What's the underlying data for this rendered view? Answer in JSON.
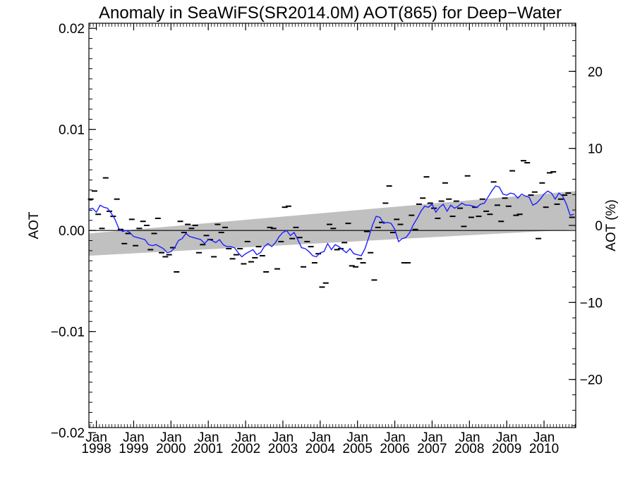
{
  "chart_data": {
    "type": "line",
    "title": "Anomaly in SeaWiFS(SR2014.0M) AOT(865) for Deep−Water",
    "ylabel_left": "AOT",
    "ylabel_right": "AOT (%)",
    "ylim_left": [
      -0.0195,
      0.0205
    ],
    "ylim_right": [
      -26.25,
      26.25
    ],
    "xlim": [
      1997.8,
      2010.85
    ],
    "left_ticks": [
      {
        "value": 0.02,
        "label": "0.02"
      },
      {
        "value": 0.01,
        "label": "0.01"
      },
      {
        "value": 0.0,
        "label": "0.00"
      },
      {
        "value": -0.01,
        "label": "−0.01"
      },
      {
        "value": -0.02,
        "label": "−0.02"
      }
    ],
    "right_ticks": [
      {
        "value": 20,
        "label": "20"
      },
      {
        "value": 10,
        "label": "10"
      },
      {
        "value": 0,
        "label": "0"
      },
      {
        "value": -10,
        "label": "−10"
      },
      {
        "value": -20,
        "label": "−20"
      }
    ],
    "x_ticks": [
      {
        "value": 1998,
        "month": "Jan",
        "year": "1998"
      },
      {
        "value": 1999,
        "month": "Jan",
        "year": "1999"
      },
      {
        "value": 2000,
        "month": "Jan",
        "year": "2000"
      },
      {
        "value": 2001,
        "month": "Jan",
        "year": "2001"
      },
      {
        "value": 2002,
        "month": "Jan",
        "year": "2002"
      },
      {
        "value": 2003,
        "month": "Jan",
        "year": "2003"
      },
      {
        "value": 2004,
        "month": "Jan",
        "year": "2004"
      },
      {
        "value": 2005,
        "month": "Jan",
        "year": "2005"
      },
      {
        "value": 2006,
        "month": "Jan",
        "year": "2006"
      },
      {
        "value": 2007,
        "month": "Jan",
        "year": "2007"
      },
      {
        "value": 2008,
        "month": "Jan",
        "year": "2008"
      },
      {
        "value": 2009,
        "month": "Jan",
        "year": "2009"
      },
      {
        "value": 2010,
        "month": "Jan",
        "year": "2010"
      }
    ],
    "trend_band": {
      "x": [
        1997.8,
        2010.85
      ],
      "upper": [
        -0.0003,
        0.0039
      ],
      "lower": [
        -0.0025,
        0.0001
      ]
    },
    "zero_line": 0.0,
    "smoothed_series": {
      "x": [
        1997.8,
        1997.9,
        1998.0,
        1998.1,
        1998.2,
        1998.3,
        1998.4,
        1998.5,
        1998.6,
        1998.7,
        1998.8,
        1998.9,
        1999.0,
        1999.1,
        1999.2,
        1999.3,
        1999.4,
        1999.5,
        1999.6,
        1999.7,
        1999.8,
        1999.9,
        2000.0,
        2000.1,
        2000.2,
        2000.3,
        2000.4,
        2000.5,
        2000.6,
        2000.7,
        2000.8,
        2000.9,
        2001.0,
        2001.1,
        2001.2,
        2001.3,
        2001.4,
        2001.5,
        2001.6,
        2001.7,
        2001.8,
        2001.9,
        2002.0,
        2002.1,
        2002.2,
        2002.3,
        2002.4,
        2002.5,
        2002.6,
        2002.7,
        2002.8,
        2002.9,
        2003.0,
        2003.1,
        2003.2,
        2003.3,
        2003.4,
        2003.5,
        2003.6,
        2003.7,
        2003.8,
        2003.9,
        2004.0,
        2004.1,
        2004.2,
        2004.3,
        2004.4,
        2004.5,
        2004.6,
        2004.7,
        2004.8,
        2004.9,
        2005.0,
        2005.1,
        2005.2,
        2005.3,
        2005.4,
        2005.5,
        2005.6,
        2005.7,
        2005.8,
        2005.9,
        2006.0,
        2006.1,
        2006.2,
        2006.3,
        2006.4,
        2006.5,
        2006.6,
        2006.7,
        2006.8,
        2006.9,
        2007.0,
        2007.1,
        2007.2,
        2007.3,
        2007.4,
        2007.5,
        2007.6,
        2007.7,
        2007.8,
        2007.9,
        2008.0,
        2008.1,
        2008.2,
        2008.3,
        2008.4,
        2008.5,
        2008.6,
        2008.7,
        2008.8,
        2008.9,
        2009.0,
        2009.1,
        2009.2,
        2009.3,
        2009.4,
        2009.5,
        2009.6,
        2009.7,
        2009.8,
        2009.9,
        2010.0,
        2010.1,
        2010.2,
        2010.3,
        2010.4,
        2010.5,
        2010.6,
        2010.7,
        2010.8
      ],
      "y": [
        0.0021,
        0.0022,
        0.0018,
        0.0025,
        0.0023,
        0.0022,
        0.0017,
        0.0011,
        0.0002,
        -0.0001,
        0.0,
        -0.0002,
        -0.0006,
        -0.0007,
        -0.0008,
        -0.0009,
        -0.0014,
        -0.0015,
        -0.0014,
        -0.0016,
        -0.0018,
        -0.0022,
        -0.0021,
        -0.0017,
        -0.001,
        -0.0008,
        -0.0003,
        -0.0006,
        -0.0007,
        -0.0008,
        -0.0009,
        -0.0013,
        -0.0009,
        -0.001,
        -0.0012,
        -0.0009,
        -0.0014,
        -0.0016,
        -0.0016,
        -0.0017,
        -0.0022,
        -0.0026,
        -0.0023,
        -0.0021,
        -0.0019,
        -0.0024,
        -0.0022,
        -0.0016,
        -0.0013,
        -0.0016,
        -0.0012,
        -0.0006,
        -0.0002,
        0.0,
        -0.0005,
        -0.0002,
        -0.0009,
        -0.0017,
        -0.0018,
        -0.0021,
        -0.0025,
        -0.0026,
        -0.0022,
        -0.0021,
        -0.0013,
        -0.0019,
        -0.0014,
        -0.0016,
        -0.0019,
        -0.0022,
        -0.0018,
        -0.0023,
        -0.0024,
        -0.0025,
        -0.0018,
        -0.0007,
        0.0005,
        0.0014,
        0.0013,
        0.0007,
        0.0008,
        0.0007,
        0.0001,
        -0.0011,
        -0.0008,
        -0.0007,
        -0.0002,
        0.0006,
        0.0012,
        0.0019,
        0.0024,
        0.0023,
        0.0026,
        0.0018,
        0.0023,
        0.0026,
        0.0019,
        0.0025,
        0.0022,
        0.0024,
        0.0027,
        0.0025,
        0.0025,
        0.0024,
        0.0023,
        0.0026,
        0.0027,
        0.0033,
        0.0039,
        0.0044,
        0.0043,
        0.0036,
        0.0035,
        0.0037,
        0.0036,
        0.0032,
        0.0036,
        0.0034,
        0.0033,
        0.0025,
        0.0027,
        0.0031,
        0.0036,
        0.0039,
        0.0037,
        0.0031,
        0.0037,
        0.0034,
        0.0026,
        0.0015,
        0.0016
      ]
    },
    "monthly_points": {
      "x": [
        1997.85,
        1997.95,
        1998.05,
        1998.15,
        1998.25,
        1998.35,
        1998.45,
        1998.55,
        1998.65,
        1998.75,
        1998.85,
        1998.95,
        1999.05,
        1999.15,
        1999.25,
        1999.35,
        1999.45,
        1999.55,
        1999.65,
        1999.75,
        1999.85,
        1999.95,
        2000.05,
        2000.15,
        2000.25,
        2000.35,
        2000.45,
        2000.55,
        2000.65,
        2000.75,
        2000.85,
        2000.95,
        2001.05,
        2001.15,
        2001.25,
        2001.35,
        2001.45,
        2001.55,
        2001.65,
        2001.75,
        2001.85,
        2001.95,
        2002.05,
        2002.15,
        2002.25,
        2002.35,
        2002.45,
        2002.55,
        2002.65,
        2002.75,
        2002.85,
        2002.95,
        2003.05,
        2003.15,
        2003.25,
        2003.35,
        2003.45,
        2003.55,
        2003.65,
        2003.75,
        2003.85,
        2003.95,
        2004.05,
        2004.15,
        2004.25,
        2004.35,
        2004.45,
        2004.55,
        2004.65,
        2004.75,
        2004.85,
        2004.95,
        2005.05,
        2005.15,
        2005.25,
        2005.35,
        2005.45,
        2005.55,
        2005.65,
        2005.75,
        2005.85,
        2005.95,
        2006.05,
        2006.15,
        2006.25,
        2006.35,
        2006.45,
        2006.55,
        2006.65,
        2006.75,
        2006.85,
        2006.95,
        2007.05,
        2007.15,
        2007.25,
        2007.35,
        2007.45,
        2007.55,
        2007.65,
        2007.75,
        2007.85,
        2007.95,
        2008.05,
        2008.15,
        2008.25,
        2008.35,
        2008.45,
        2008.55,
        2008.65,
        2008.75,
        2008.85,
        2008.95,
        2009.05,
        2009.15,
        2009.25,
        2009.35,
        2009.45,
        2009.55,
        2009.65,
        2009.75,
        2009.85,
        2009.95,
        2010.05,
        2010.15,
        2010.25,
        2010.35,
        2010.45,
        2010.55,
        2010.65,
        2010.75
      ],
      "y": [
        0.0031,
        0.0039,
        0.0016,
        0.0002,
        0.0052,
        0.0019,
        0.0014,
        0.0031,
        0.0001,
        -0.0013,
        -0.0003,
        0.0011,
        -0.0015,
        0.0002,
        0.0009,
        0.0005,
        -0.0019,
        -0.0003,
        0.0012,
        -0.0022,
        -0.0026,
        -0.0024,
        -0.0017,
        -0.0041,
        0.0009,
        -0.0002,
        0.0006,
        0.0002,
        0.0005,
        -0.0022,
        -0.0014,
        -0.0005,
        -0.0009,
        -0.0026,
        0.0006,
        -0.0002,
        0.0003,
        -0.0018,
        -0.0028,
        -0.0024,
        -0.0018,
        -0.0033,
        -0.0011,
        -0.0031,
        -0.0027,
        -0.0016,
        -0.0025,
        -0.0041,
        0.0003,
        0.0002,
        -0.0038,
        -0.0011,
        0.0023,
        0.0024,
        -0.0008,
        0.0003,
        -0.0007,
        -0.0036,
        -0.0011,
        -0.0016,
        -0.0032,
        -0.0023,
        -0.0056,
        -0.0052,
        0.0006,
        0.0002,
        -0.0019,
        -0.0018,
        -0.0012,
        0.0007,
        -0.0035,
        -0.0036,
        -0.0028,
        -0.0032,
        -0.0001,
        -0.0022,
        -0.0049,
        0.0003,
        0.0008,
        0.0027,
        0.0044,
        -0.0002,
        0.0011,
        0.0006,
        -0.0032,
        -0.0032,
        0.0015,
        0.0001,
        0.0026,
        0.0032,
        0.0053,
        0.0027,
        0.0022,
        0.0012,
        0.0029,
        0.0047,
        0.0031,
        0.0014,
        0.0029,
        0.0022,
        0.0004,
        0.0054,
        0.0013,
        0.0023,
        0.0014,
        0.0031,
        0.0019,
        0.0016,
        0.0048,
        0.0025,
        0.0009,
        0.0032,
        0.0024,
        0.0059,
        0.0015,
        0.0016,
        0.0069,
        0.0067,
        0.0035,
        0.0038,
        -0.0008,
        0.0047,
        0.0023,
        0.0057,
        0.0058,
        0.0026,
        0.0031,
        0.0035,
        0.0037,
        0.0013
      ]
    },
    "colors": {
      "trend_band": "#c0c0c0",
      "smoothed_series": "#1f1fff",
      "points": "#000000",
      "axes": "#000000"
    }
  }
}
